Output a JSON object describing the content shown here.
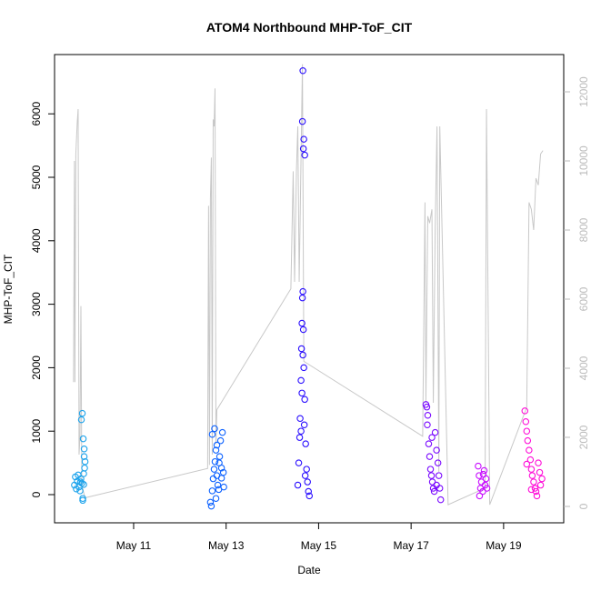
{
  "chart_data": {
    "type": "scatter",
    "title": "ATOM4 Northbound MHP-ToF_CIT",
    "x_label": "Date",
    "y_label": "MHP-ToF_CIT",
    "xlim": [
      9.29,
      20.3
    ],
    "xticks": [
      {
        "value": 11,
        "label": "May 11"
      },
      {
        "value": 13,
        "label": "May 13"
      },
      {
        "value": 15,
        "label": "May 15"
      },
      {
        "value": 17,
        "label": "May 17"
      },
      {
        "value": 19,
        "label": "May 19"
      }
    ],
    "ylim": [
      -444,
      6934
    ],
    "yticks": [
      0,
      1000,
      2000,
      3000,
      4000,
      5000,
      6000
    ],
    "y2lim": [
      -474,
      13079
    ],
    "y2ticks": [
      0,
      2000,
      4000,
      6000,
      8000,
      10000,
      12000
    ],
    "y2_color": "#bbbbbb",
    "series": [
      {
        "type": "line",
        "axis": "y2",
        "color": "#c8c8c8",
        "x": [
          9.7,
          9.72,
          9.73,
          9.75,
          9.76,
          9.78,
          9.8,
          9.82,
          9.84,
          9.86,
          9.88,
          9.95,
          12.6,
          12.62,
          12.64,
          12.66,
          12.68,
          12.7,
          12.72,
          12.74,
          12.76,
          12.78,
          12.8,
          14.4,
          14.45,
          14.48,
          14.52,
          14.55,
          14.58,
          14.65,
          14.68,
          17.25,
          17.3,
          17.32,
          17.36,
          17.4,
          17.45,
          17.48,
          17.52,
          17.56,
          17.6,
          17.62,
          17.8,
          18.6,
          18.63,
          18.7,
          19.5,
          19.55,
          19.6,
          19.65,
          19.7,
          19.75,
          19.8,
          19.85
        ],
        "values": [
          3600,
          10000,
          3600,
          10200,
          10500,
          11100,
          11500,
          1500,
          2000,
          5800,
          600,
          250,
          1100,
          8700,
          1200,
          8900,
          10100,
          1500,
          11200,
          11000,
          12100,
          1800,
          2800,
          6300,
          9700,
          6500,
          9700,
          11000,
          6500,
          12800,
          4200,
          2030,
          8800,
          3000,
          8400,
          8200,
          8600,
          3000,
          8000,
          11000,
          1000,
          11000,
          50,
          530,
          11500,
          50,
          2870,
          8800,
          8600,
          8000,
          9500,
          9300,
          10200,
          10300
        ]
      },
      {
        "type": "points",
        "color": "#1ca3ec",
        "x": [
          9.72,
          9.74,
          9.76,
          9.78,
          9.8,
          9.82,
          9.84,
          9.86,
          9.88,
          9.9,
          9.92,
          9.94,
          9.95,
          9.93,
          9.91,
          9.89,
          9.87,
          9.85,
          9.9,
          9.92,
          9.93
        ],
        "values": [
          150,
          280,
          90,
          210,
          310,
          120,
          60,
          250,
          180,
          -60,
          330,
          420,
          520,
          720,
          880,
          1280,
          1180,
          200,
          -90,
          160,
          600
        ]
      },
      {
        "type": "points",
        "color": "#0d62ff",
        "x": [
          12.66,
          12.68,
          12.7,
          12.72,
          12.74,
          12.76,
          12.78,
          12.8,
          12.82,
          12.84,
          12.86,
          12.88,
          12.9,
          12.92,
          12.94,
          12.7,
          12.75,
          12.8,
          12.85,
          12.9,
          12.78,
          12.95
        ],
        "values": [
          -120,
          -180,
          60,
          250,
          400,
          520,
          700,
          300,
          150,
          80,
          600,
          850,
          420,
          980,
          350,
          950,
          1040,
          780,
          500,
          260,
          -60,
          120
        ]
      },
      {
        "type": "points",
        "color": "#2b0fff",
        "x": [
          14.55,
          14.57,
          14.59,
          14.6,
          14.62,
          14.63,
          14.64,
          14.65,
          14.66,
          14.67,
          14.68,
          14.7,
          14.72,
          14.74,
          14.76,
          14.78,
          14.8,
          14.62,
          14.64,
          14.66,
          14.68,
          14.7,
          14.65,
          14.66,
          14.67,
          14.69,
          14.71
        ],
        "values": [
          150,
          500,
          900,
          1200,
          1800,
          2300,
          2700,
          3100,
          3200,
          2600,
          2000,
          1500,
          800,
          400,
          200,
          50,
          -20,
          1000,
          1600,
          2200,
          5600,
          5350,
          5880,
          6680,
          5450,
          1100,
          300
        ]
      },
      {
        "type": "points",
        "color": "#7a0aff",
        "x": [
          17.32,
          17.34,
          17.36,
          17.38,
          17.4,
          17.42,
          17.44,
          17.46,
          17.48,
          17.5,
          17.52,
          17.55,
          17.58,
          17.6,
          17.62,
          17.64,
          17.35,
          17.45,
          17.55
        ],
        "values": [
          1420,
          1380,
          1250,
          800,
          600,
          400,
          300,
          200,
          100,
          50,
          980,
          700,
          500,
          300,
          100,
          -80,
          1100,
          900,
          150
        ]
      },
      {
        "type": "points",
        "color": "#c80eff",
        "x": [
          18.45,
          18.47,
          18.5,
          18.52,
          18.55,
          18.58,
          18.6,
          18.62,
          18.64,
          18.48,
          18.56
        ],
        "values": [
          450,
          300,
          100,
          200,
          50,
          380,
          150,
          250,
          100,
          -20,
          320
        ]
      },
      {
        "type": "points",
        "color": "#ff0ed8",
        "x": [
          19.46,
          19.48,
          19.5,
          19.52,
          19.55,
          19.58,
          19.6,
          19.62,
          19.65,
          19.68,
          19.7,
          19.72,
          19.75,
          19.78,
          19.8,
          19.83,
          19.5,
          19.6
        ],
        "values": [
          1320,
          1150,
          1000,
          850,
          700,
          550,
          400,
          300,
          200,
          100,
          50,
          -20,
          500,
          350,
          150,
          250,
          480,
          80
        ]
      }
    ]
  }
}
